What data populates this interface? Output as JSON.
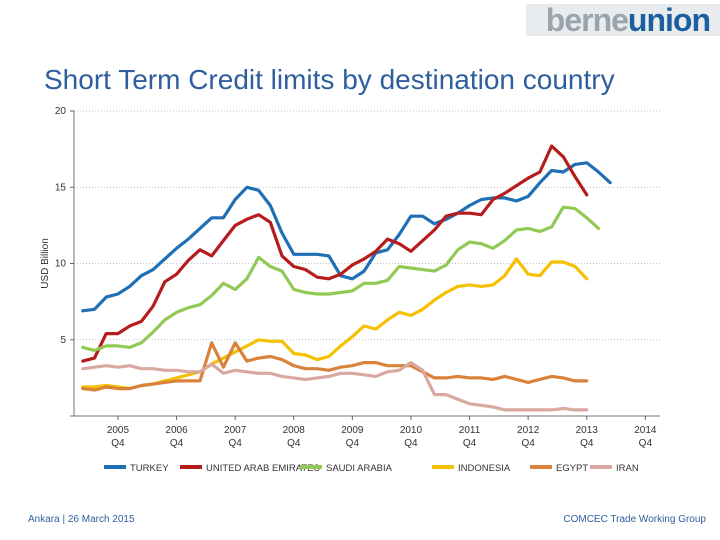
{
  "header": {
    "logo_part1": "berne",
    "logo_part2": "union",
    "title": "Short Term Credit limits by destination country"
  },
  "footer": {
    "left": "Ankara | 26 March 2015",
    "right": "COMCEC Trade Working Group"
  },
  "colors": {
    "title": "#2e5e9e",
    "logo_gray": "#9aa4ad",
    "logo_blue": "#1b5f9e"
  },
  "chart_data": {
    "type": "line",
    "title": "",
    "ylabel": "USD Billion",
    "xlabel": "",
    "ylim": [
      0,
      20
    ],
    "y_ticks": [
      5,
      10,
      15,
      20
    ],
    "grid": true,
    "legend_position": "bottom",
    "x_range": [
      2004.25,
      2014.25
    ],
    "x_ticks": [
      {
        "x": 2005.0,
        "line1": "2005",
        "line2": "Q4"
      },
      {
        "x": 2006.0,
        "line1": "2006",
        "line2": "Q4"
      },
      {
        "x": 2007.0,
        "line1": "2007",
        "line2": "Q4"
      },
      {
        "x": 2008.0,
        "line1": "2008",
        "line2": "Q4"
      },
      {
        "x": 2009.0,
        "line1": "2009",
        "line2": "Q4"
      },
      {
        "x": 2010.0,
        "line1": "2010",
        "line2": "Q4"
      },
      {
        "x": 2011.0,
        "line1": "2011",
        "line2": "Q4"
      },
      {
        "x": 2012.0,
        "line1": "2012",
        "line2": "Q4"
      },
      {
        "x": 2013.0,
        "line1": "2013",
        "line2": "Q4"
      },
      {
        "x": 2014.0,
        "line1": "2014",
        "line2": "Q4"
      }
    ],
    "series": [
      {
        "name": "TURKEY",
        "color": "#1f6fb5",
        "values": [
          [
            2004.4,
            6.9
          ],
          [
            2004.6,
            7.0
          ],
          [
            2004.8,
            7.8
          ],
          [
            2005.0,
            8.0
          ],
          [
            2005.2,
            8.5
          ],
          [
            2005.4,
            9.2
          ],
          [
            2005.6,
            9.6
          ],
          [
            2005.8,
            10.3
          ],
          [
            2006.0,
            11.0
          ],
          [
            2006.2,
            11.6
          ],
          [
            2006.4,
            12.3
          ],
          [
            2006.6,
            13.0
          ],
          [
            2006.8,
            13.0
          ],
          [
            2007.0,
            14.2
          ],
          [
            2007.2,
            15.0
          ],
          [
            2007.4,
            14.8
          ],
          [
            2007.6,
            13.8
          ],
          [
            2007.8,
            12.0
          ],
          [
            2008.0,
            10.6
          ],
          [
            2008.2,
            10.6
          ],
          [
            2008.4,
            10.6
          ],
          [
            2008.6,
            10.5
          ],
          [
            2008.8,
            9.2
          ],
          [
            2009.0,
            9.0
          ],
          [
            2009.2,
            9.5
          ],
          [
            2009.4,
            10.7
          ],
          [
            2009.6,
            10.9
          ],
          [
            2009.8,
            11.9
          ],
          [
            2010.0,
            13.1
          ],
          [
            2010.2,
            13.1
          ],
          [
            2010.4,
            12.6
          ],
          [
            2010.6,
            12.9
          ],
          [
            2010.8,
            13.3
          ],
          [
            2011.0,
            13.8
          ],
          [
            2011.2,
            14.2
          ],
          [
            2011.4,
            14.3
          ],
          [
            2011.6,
            14.3
          ],
          [
            2011.8,
            14.1
          ],
          [
            2012.0,
            14.4
          ],
          [
            2012.2,
            15.3
          ],
          [
            2012.4,
            16.1
          ],
          [
            2012.6,
            16.0
          ],
          [
            2012.8,
            16.5
          ],
          [
            2013.0,
            16.6
          ],
          [
            2013.2,
            16.0
          ],
          [
            2013.4,
            15.3
          ]
        ]
      },
      {
        "name": "UNITED ARAB EMIRATES",
        "color": "#b71c1c",
        "values": [
          [
            2004.4,
            3.6
          ],
          [
            2004.6,
            3.8
          ],
          [
            2004.8,
            5.4
          ],
          [
            2005.0,
            5.4
          ],
          [
            2005.2,
            5.9
          ],
          [
            2005.4,
            6.2
          ],
          [
            2005.6,
            7.2
          ],
          [
            2005.8,
            8.8
          ],
          [
            2006.0,
            9.3
          ],
          [
            2006.2,
            10.2
          ],
          [
            2006.4,
            10.9
          ],
          [
            2006.6,
            10.5
          ],
          [
            2006.8,
            11.5
          ],
          [
            2007.0,
            12.5
          ],
          [
            2007.2,
            12.9
          ],
          [
            2007.4,
            13.2
          ],
          [
            2007.6,
            12.7
          ],
          [
            2007.8,
            10.5
          ],
          [
            2008.0,
            9.8
          ],
          [
            2008.2,
            9.6
          ],
          [
            2008.4,
            9.1
          ],
          [
            2008.6,
            9.0
          ],
          [
            2008.8,
            9.3
          ],
          [
            2009.0,
            9.9
          ],
          [
            2009.2,
            10.3
          ],
          [
            2009.4,
            10.8
          ],
          [
            2009.6,
            11.6
          ],
          [
            2009.8,
            11.3
          ],
          [
            2010.0,
            10.8
          ],
          [
            2010.2,
            11.5
          ],
          [
            2010.4,
            12.2
          ],
          [
            2010.6,
            13.1
          ],
          [
            2010.8,
            13.3
          ],
          [
            2011.0,
            13.3
          ],
          [
            2011.2,
            13.2
          ],
          [
            2011.4,
            14.2
          ],
          [
            2011.6,
            14.6
          ],
          [
            2011.8,
            15.1
          ],
          [
            2012.0,
            15.6
          ],
          [
            2012.2,
            16.0
          ],
          [
            2012.4,
            17.7
          ],
          [
            2012.6,
            17.0
          ],
          [
            2012.8,
            15.7
          ],
          [
            2013.0,
            14.5
          ]
        ]
      },
      {
        "name": "SAUDI ARABIA",
        "color": "#92c955",
        "values": [
          [
            2004.4,
            4.5
          ],
          [
            2004.6,
            4.3
          ],
          [
            2004.8,
            4.6
          ],
          [
            2005.0,
            4.6
          ],
          [
            2005.2,
            4.5
          ],
          [
            2005.4,
            4.8
          ],
          [
            2005.6,
            5.5
          ],
          [
            2005.8,
            6.3
          ],
          [
            2006.0,
            6.8
          ],
          [
            2006.2,
            7.1
          ],
          [
            2006.4,
            7.3
          ],
          [
            2006.6,
            7.9
          ],
          [
            2006.8,
            8.7
          ],
          [
            2007.0,
            8.3
          ],
          [
            2007.2,
            9.0
          ],
          [
            2007.4,
            10.4
          ],
          [
            2007.6,
            9.8
          ],
          [
            2007.8,
            9.5
          ],
          [
            2008.0,
            8.3
          ],
          [
            2008.2,
            8.1
          ],
          [
            2008.4,
            8.0
          ],
          [
            2008.6,
            8.0
          ],
          [
            2008.8,
            8.1
          ],
          [
            2009.0,
            8.2
          ],
          [
            2009.2,
            8.7
          ],
          [
            2009.4,
            8.7
          ],
          [
            2009.6,
            8.9
          ],
          [
            2009.8,
            9.8
          ],
          [
            2010.0,
            9.7
          ],
          [
            2010.2,
            9.6
          ],
          [
            2010.4,
            9.5
          ],
          [
            2010.6,
            9.9
          ],
          [
            2010.8,
            10.9
          ],
          [
            2011.0,
            11.4
          ],
          [
            2011.2,
            11.3
          ],
          [
            2011.4,
            11.0
          ],
          [
            2011.6,
            11.5
          ],
          [
            2011.8,
            12.2
          ],
          [
            2012.0,
            12.3
          ],
          [
            2012.2,
            12.1
          ],
          [
            2012.4,
            12.4
          ],
          [
            2012.6,
            13.7
          ],
          [
            2012.8,
            13.6
          ],
          [
            2013.0,
            13.0
          ],
          [
            2013.2,
            12.3
          ]
        ]
      },
      {
        "name": "INDONESIA",
        "color": "#f5c000",
        "values": [
          [
            2004.4,
            1.9
          ],
          [
            2004.6,
            1.9
          ],
          [
            2004.8,
            2.0
          ],
          [
            2005.0,
            1.9
          ],
          [
            2005.2,
            1.8
          ],
          [
            2005.4,
            2.0
          ],
          [
            2005.6,
            2.1
          ],
          [
            2005.8,
            2.3
          ],
          [
            2006.0,
            2.5
          ],
          [
            2006.2,
            2.7
          ],
          [
            2006.4,
            2.9
          ],
          [
            2006.6,
            3.4
          ],
          [
            2006.8,
            3.8
          ],
          [
            2007.0,
            4.2
          ],
          [
            2007.2,
            4.6
          ],
          [
            2007.4,
            5.0
          ],
          [
            2007.6,
            4.9
          ],
          [
            2007.8,
            4.9
          ],
          [
            2008.0,
            4.1
          ],
          [
            2008.2,
            4.0
          ],
          [
            2008.4,
            3.7
          ],
          [
            2008.6,
            3.9
          ],
          [
            2008.8,
            4.6
          ],
          [
            2009.0,
            5.2
          ],
          [
            2009.2,
            5.9
          ],
          [
            2009.4,
            5.7
          ],
          [
            2009.6,
            6.3
          ],
          [
            2009.8,
            6.8
          ],
          [
            2010.0,
            6.6
          ],
          [
            2010.2,
            7.0
          ],
          [
            2010.4,
            7.6
          ],
          [
            2010.6,
            8.1
          ],
          [
            2010.8,
            8.5
          ],
          [
            2011.0,
            8.6
          ],
          [
            2011.2,
            8.5
          ],
          [
            2011.4,
            8.6
          ],
          [
            2011.6,
            9.2
          ],
          [
            2011.8,
            10.3
          ],
          [
            2012.0,
            9.3
          ],
          [
            2012.2,
            9.2
          ],
          [
            2012.4,
            10.1
          ],
          [
            2012.6,
            10.1
          ],
          [
            2012.8,
            9.8
          ],
          [
            2013.0,
            9.0
          ]
        ]
      },
      {
        "name": "EGYPT",
        "color": "#d9823b",
        "values": [
          [
            2004.4,
            1.8
          ],
          [
            2004.6,
            1.7
          ],
          [
            2004.8,
            1.9
          ],
          [
            2005.0,
            1.8
          ],
          [
            2005.2,
            1.8
          ],
          [
            2005.4,
            2.0
          ],
          [
            2005.6,
            2.1
          ],
          [
            2005.8,
            2.2
          ],
          [
            2006.0,
            2.3
          ],
          [
            2006.2,
            2.3
          ],
          [
            2006.4,
            2.3
          ],
          [
            2006.6,
            4.8
          ],
          [
            2006.8,
            3.2
          ],
          [
            2007.0,
            4.8
          ],
          [
            2007.2,
            3.6
          ],
          [
            2007.4,
            3.8
          ],
          [
            2007.6,
            3.9
          ],
          [
            2007.8,
            3.7
          ],
          [
            2008.0,
            3.3
          ],
          [
            2008.2,
            3.1
          ],
          [
            2008.4,
            3.1
          ],
          [
            2008.6,
            3.0
          ],
          [
            2008.8,
            3.2
          ],
          [
            2009.0,
            3.3
          ],
          [
            2009.2,
            3.5
          ],
          [
            2009.4,
            3.5
          ],
          [
            2009.6,
            3.3
          ],
          [
            2009.8,
            3.3
          ],
          [
            2010.0,
            3.3
          ],
          [
            2010.2,
            2.9
          ],
          [
            2010.4,
            2.5
          ],
          [
            2010.6,
            2.5
          ],
          [
            2010.8,
            2.6
          ],
          [
            2011.0,
            2.5
          ],
          [
            2011.2,
            2.5
          ],
          [
            2011.4,
            2.4
          ],
          [
            2011.6,
            2.6
          ],
          [
            2011.8,
            2.4
          ],
          [
            2012.0,
            2.2
          ],
          [
            2012.2,
            2.4
          ],
          [
            2012.4,
            2.6
          ],
          [
            2012.6,
            2.5
          ],
          [
            2012.8,
            2.3
          ],
          [
            2013.0,
            2.3
          ]
        ]
      },
      {
        "name": "IRAN",
        "color": "#d9a8a0",
        "values": [
          [
            2004.4,
            3.1
          ],
          [
            2004.6,
            3.2
          ],
          [
            2004.8,
            3.3
          ],
          [
            2005.0,
            3.2
          ],
          [
            2005.2,
            3.3
          ],
          [
            2005.4,
            3.1
          ],
          [
            2005.6,
            3.1
          ],
          [
            2005.8,
            3.0
          ],
          [
            2006.0,
            3.0
          ],
          [
            2006.2,
            2.9
          ],
          [
            2006.4,
            2.9
          ],
          [
            2006.6,
            3.4
          ],
          [
            2006.8,
            2.8
          ],
          [
            2007.0,
            3.0
          ],
          [
            2007.2,
            2.9
          ],
          [
            2007.4,
            2.8
          ],
          [
            2007.6,
            2.8
          ],
          [
            2007.8,
            2.6
          ],
          [
            2008.0,
            2.5
          ],
          [
            2008.2,
            2.4
          ],
          [
            2008.4,
            2.5
          ],
          [
            2008.6,
            2.6
          ],
          [
            2008.8,
            2.8
          ],
          [
            2009.0,
            2.8
          ],
          [
            2009.2,
            2.7
          ],
          [
            2009.4,
            2.6
          ],
          [
            2009.6,
            2.9
          ],
          [
            2009.8,
            3.0
          ],
          [
            2010.0,
            3.5
          ],
          [
            2010.2,
            3.0
          ],
          [
            2010.4,
            1.4
          ],
          [
            2010.6,
            1.4
          ],
          [
            2010.8,
            1.1
          ],
          [
            2011.0,
            0.8
          ],
          [
            2011.2,
            0.7
          ],
          [
            2011.4,
            0.6
          ],
          [
            2011.6,
            0.4
          ],
          [
            2011.8,
            0.4
          ],
          [
            2012.0,
            0.4
          ],
          [
            2012.2,
            0.4
          ],
          [
            2012.4,
            0.4
          ],
          [
            2012.6,
            0.5
          ],
          [
            2012.8,
            0.4
          ],
          [
            2013.0,
            0.4
          ]
        ]
      }
    ]
  }
}
